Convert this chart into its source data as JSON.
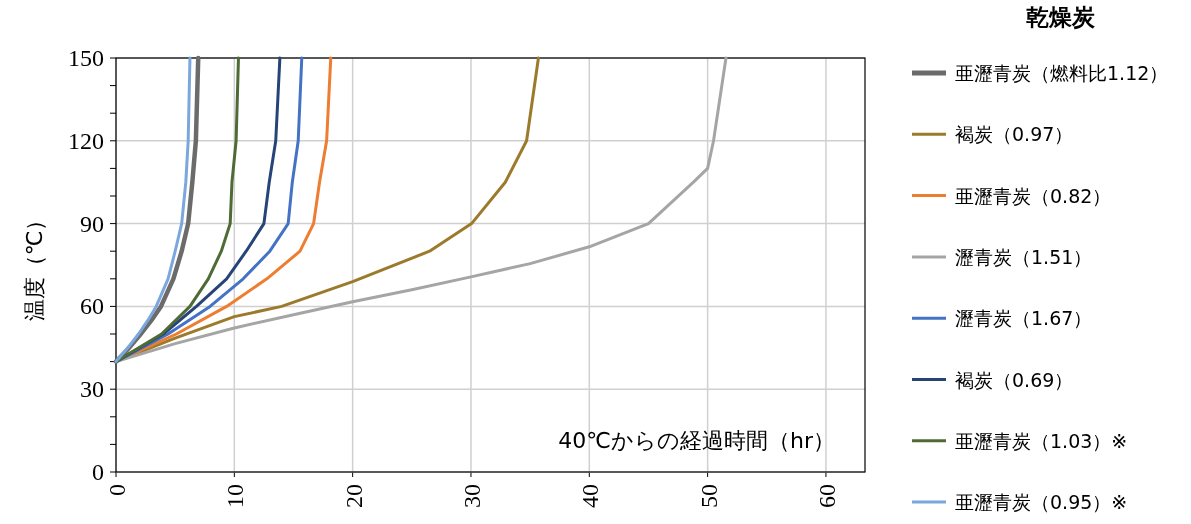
{
  "chart_data": {
    "type": "line",
    "xlabel": "40℃からの経過時間（hr）",
    "ylabel": "温度（℃）",
    "legend_title": "乾燥炭",
    "legend": "right",
    "grid": true,
    "marker": "none",
    "line_style": "solid",
    "xlim": [
      0,
      63.3
    ],
    "xticks": [
      0,
      10,
      20,
      30,
      40,
      50,
      60
    ],
    "ylim": [
      0,
      150
    ],
    "yticks": [
      0,
      {
        "value": 10,
        "label": null
      },
      {
        "value": 20,
        "label": null
      },
      30,
      {
        "value": 40,
        "label": null
      },
      {
        "value": 50,
        "label": null
      },
      60,
      {
        "value": 70,
        "label": null
      },
      {
        "value": 80,
        "label": null
      },
      90,
      {
        "value": 100,
        "label": null
      },
      {
        "value": 110,
        "label": null
      },
      120,
      {
        "value": 130,
        "label": null
      },
      {
        "value": 140,
        "label": null
      },
      150
    ],
    "series": [
      {
        "name": "亜瀝青炭（燃料比1.12）",
        "color": "#6b6b6b",
        "x": [
          0,
          1,
          2,
          3,
          3.8,
          4.85,
          5.55,
          6.1,
          6.45,
          6.75,
          6.95
        ],
        "values": [
          40,
          44.5,
          49.5,
          55,
          60,
          70,
          80,
          90,
          105,
          120,
          150
        ]
      },
      {
        "name": "褐炭（0.97）",
        "color": "#9c7a2c",
        "x": [
          0,
          5,
          10,
          14,
          20,
          26.5,
          30.05,
          32.9,
          34.7,
          35.7
        ],
        "values": [
          40,
          48.5,
          56.3,
          60,
          69,
          80,
          90,
          105,
          120,
          150
        ]
      },
      {
        "name": "亜瀝青炭（0.82）",
        "color": "#ed7d31",
        "x": [
          0,
          5.1,
          9.35,
          12.75,
          15.55,
          16.7,
          17.2,
          17.8,
          18.15
        ],
        "values": [
          40,
          50,
          60,
          70,
          80,
          90,
          105,
          120,
          150
        ]
      },
      {
        "name": "瀝青炭（1.51）",
        "color": "#a5a5a5",
        "x": [
          0,
          5,
          10,
          15,
          20,
          25,
          30,
          35,
          40,
          45,
          48.8,
          50,
          50.5,
          51.55
        ],
        "values": [
          40,
          46.5,
          52.2,
          57,
          61.7,
          66,
          70.7,
          75.5,
          81.6,
          90,
          105,
          110,
          120,
          150
        ]
      },
      {
        "name": "瀝青炭（1.67）",
        "color": "#4472c4",
        "x": [
          0,
          4.4,
          7.95,
          10.75,
          13,
          14.55,
          14.9,
          15.4,
          15.7
        ],
        "values": [
          40,
          50,
          60,
          70,
          80,
          90,
          105,
          120,
          150
        ]
      },
      {
        "name": "褐炭（0.69）",
        "color": "#264478",
        "x": [
          0,
          4,
          6.8,
          9.35,
          11,
          12.5,
          12.95,
          13.5,
          13.85
        ],
        "values": [
          40,
          50,
          60,
          70,
          80,
          90,
          105,
          120,
          150
        ]
      },
      {
        "name": "亜瀝青炭（1.03）※",
        "color": "#4e6b36",
        "x": [
          0,
          3.85,
          6.25,
          7.8,
          8.9,
          9.65,
          9.8,
          10.15,
          10.35
        ],
        "values": [
          40,
          50,
          60,
          70,
          80,
          90,
          105,
          120,
          150
        ]
      },
      {
        "name": "亜瀝青炭（0.95）※",
        "color": "#7ba7dc",
        "x": [
          0,
          1,
          1.9,
          2.7,
          3.4,
          4.4,
          5,
          5.55,
          5.9,
          6.1,
          6.25
        ],
        "values": [
          40,
          45,
          50,
          55,
          60,
          70,
          80,
          90,
          105,
          120,
          150
        ]
      }
    ]
  }
}
